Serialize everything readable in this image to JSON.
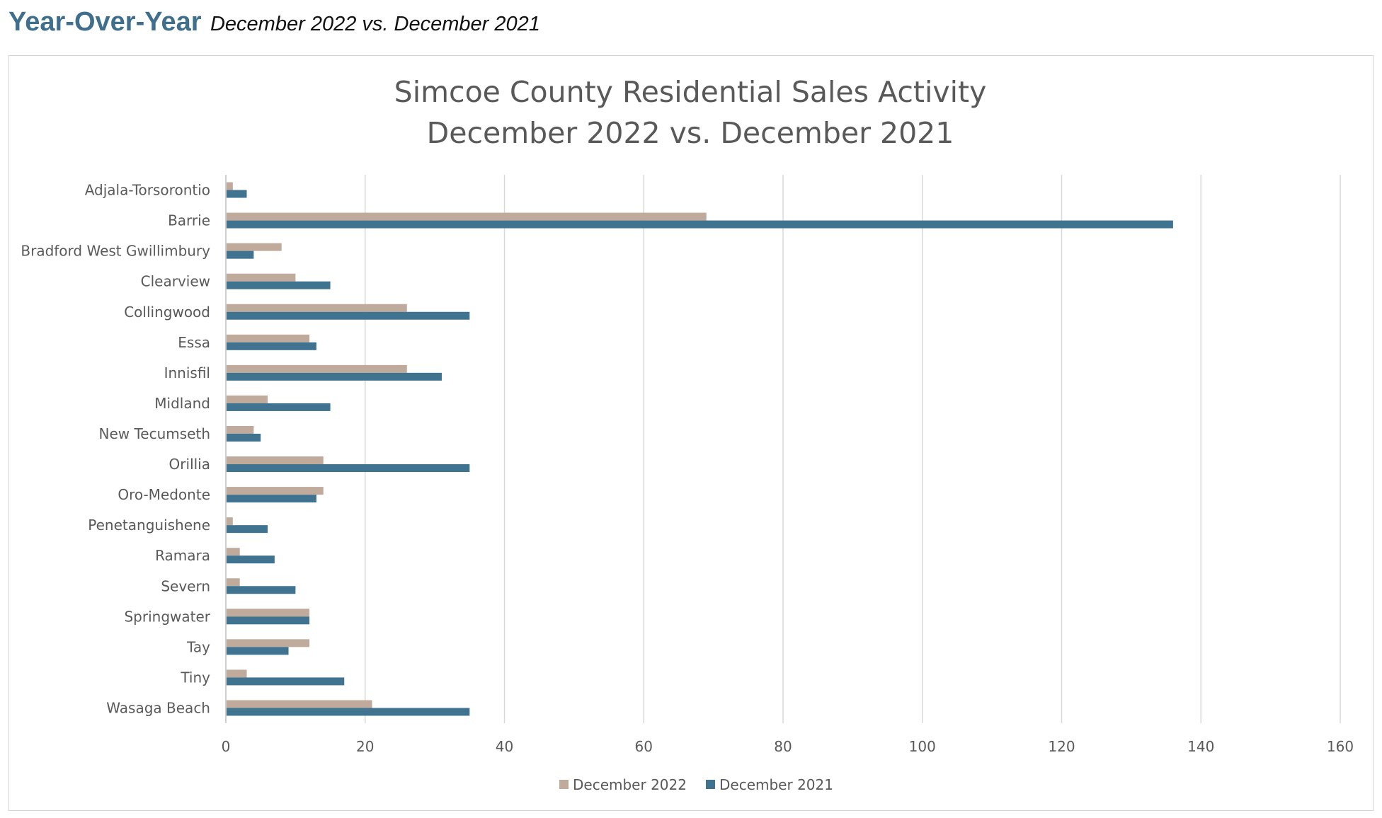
{
  "header": {
    "title": "Year-Over-Year",
    "subtitle": "December 2022 vs. December 2021"
  },
  "chart_data": {
    "type": "bar",
    "orientation": "horizontal",
    "title_lines": [
      "Simcoe County Residential Sales Activity",
      "December 2022 vs. December 2021"
    ],
    "xlabel": "",
    "ylabel": "",
    "xlim": [
      0,
      160
    ],
    "x_ticks": [
      "0",
      "20",
      "40",
      "60",
      "80",
      "100",
      "120",
      "140",
      "160"
    ],
    "grid": "vertical",
    "legend_position": "bottom",
    "categories": [
      "Adjala-Torsorontio",
      "Barrie",
      "Bradford West Gwillimbury",
      "Clearview",
      "Collingwood",
      "Essa",
      "Innisfil",
      "Midland",
      "New Tecumseth",
      "Orillia",
      "Oro-Medonte",
      "Penetanguishene",
      "Ramara",
      "Severn",
      "Springwater",
      "Tay",
      "Tiny",
      "Wasaga Beach"
    ],
    "series": [
      {
        "name": "December 2022",
        "color": "#bfaa9c",
        "values": [
          1,
          69,
          8,
          10,
          26,
          12,
          26,
          6,
          4,
          14,
          14,
          1,
          2,
          2,
          12,
          12,
          3,
          21
        ]
      },
      {
        "name": "December 2021",
        "color": "#3f738f",
        "values": [
          3,
          136,
          4,
          15,
          35,
          13,
          31,
          15,
          5,
          35,
          13,
          6,
          7,
          10,
          12,
          9,
          17,
          35
        ]
      }
    ]
  },
  "colors": {
    "header_title": "#3f6f8c",
    "grid": "#d9d9d9",
    "axis": "#bfbfbf",
    "text": "#595959"
  }
}
